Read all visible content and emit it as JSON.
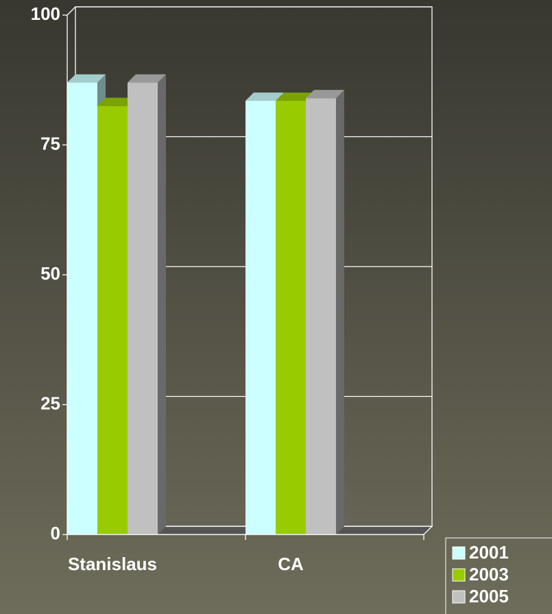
{
  "chart_data": {
    "type": "bar3d",
    "categories": [
      "Stanislaus",
      "CA"
    ],
    "series": [
      {
        "name": "2001",
        "color": "#ccffff",
        "values": [
          87,
          83.5
        ]
      },
      {
        "name": "2003",
        "color": "#99cc00",
        "values": [
          82.5,
          83.5
        ]
      },
      {
        "name": "2005",
        "color": "#c0c0c0",
        "values": [
          87,
          84
        ]
      }
    ],
    "ylim": [
      0,
      100
    ],
    "yticks": [
      0,
      25,
      50,
      75,
      100
    ],
    "grid": true,
    "legend": "bottom-right"
  }
}
